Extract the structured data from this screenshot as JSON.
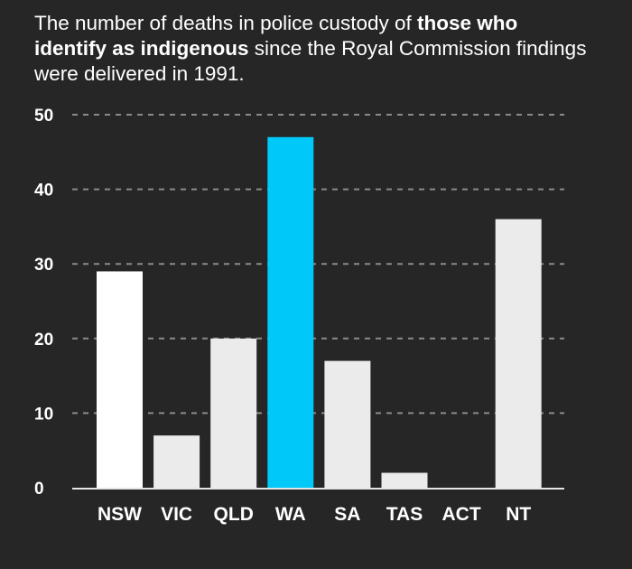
{
  "chart_data": {
    "type": "bar",
    "title_parts": [
      {
        "text": "The number of deaths in police custody of ",
        "bold": false
      },
      {
        "text": "those who identify as indigenous",
        "bold": true
      },
      {
        "text": " since the Royal Commission findings were delivered in 1991.",
        "bold": false
      }
    ],
    "categories": [
      "NSW",
      "VIC",
      "QLD",
      "WA",
      "SA",
      "TAS",
      "ACT",
      "NT"
    ],
    "values": [
      29,
      7,
      20,
      47,
      17,
      2,
      0,
      36
    ],
    "highlight": "WA",
    "ylim": [
      0,
      50
    ],
    "yticks": [
      0,
      10,
      20,
      30,
      40,
      50
    ],
    "grid": true,
    "xlabel": "",
    "ylabel": "",
    "colors": {
      "bar": "#ebebeb",
      "bar_first": "#ffffff",
      "highlight": "#00c8f8",
      "background": "#262626",
      "text": "#ffffff",
      "grid": "#8a8a8a"
    }
  }
}
